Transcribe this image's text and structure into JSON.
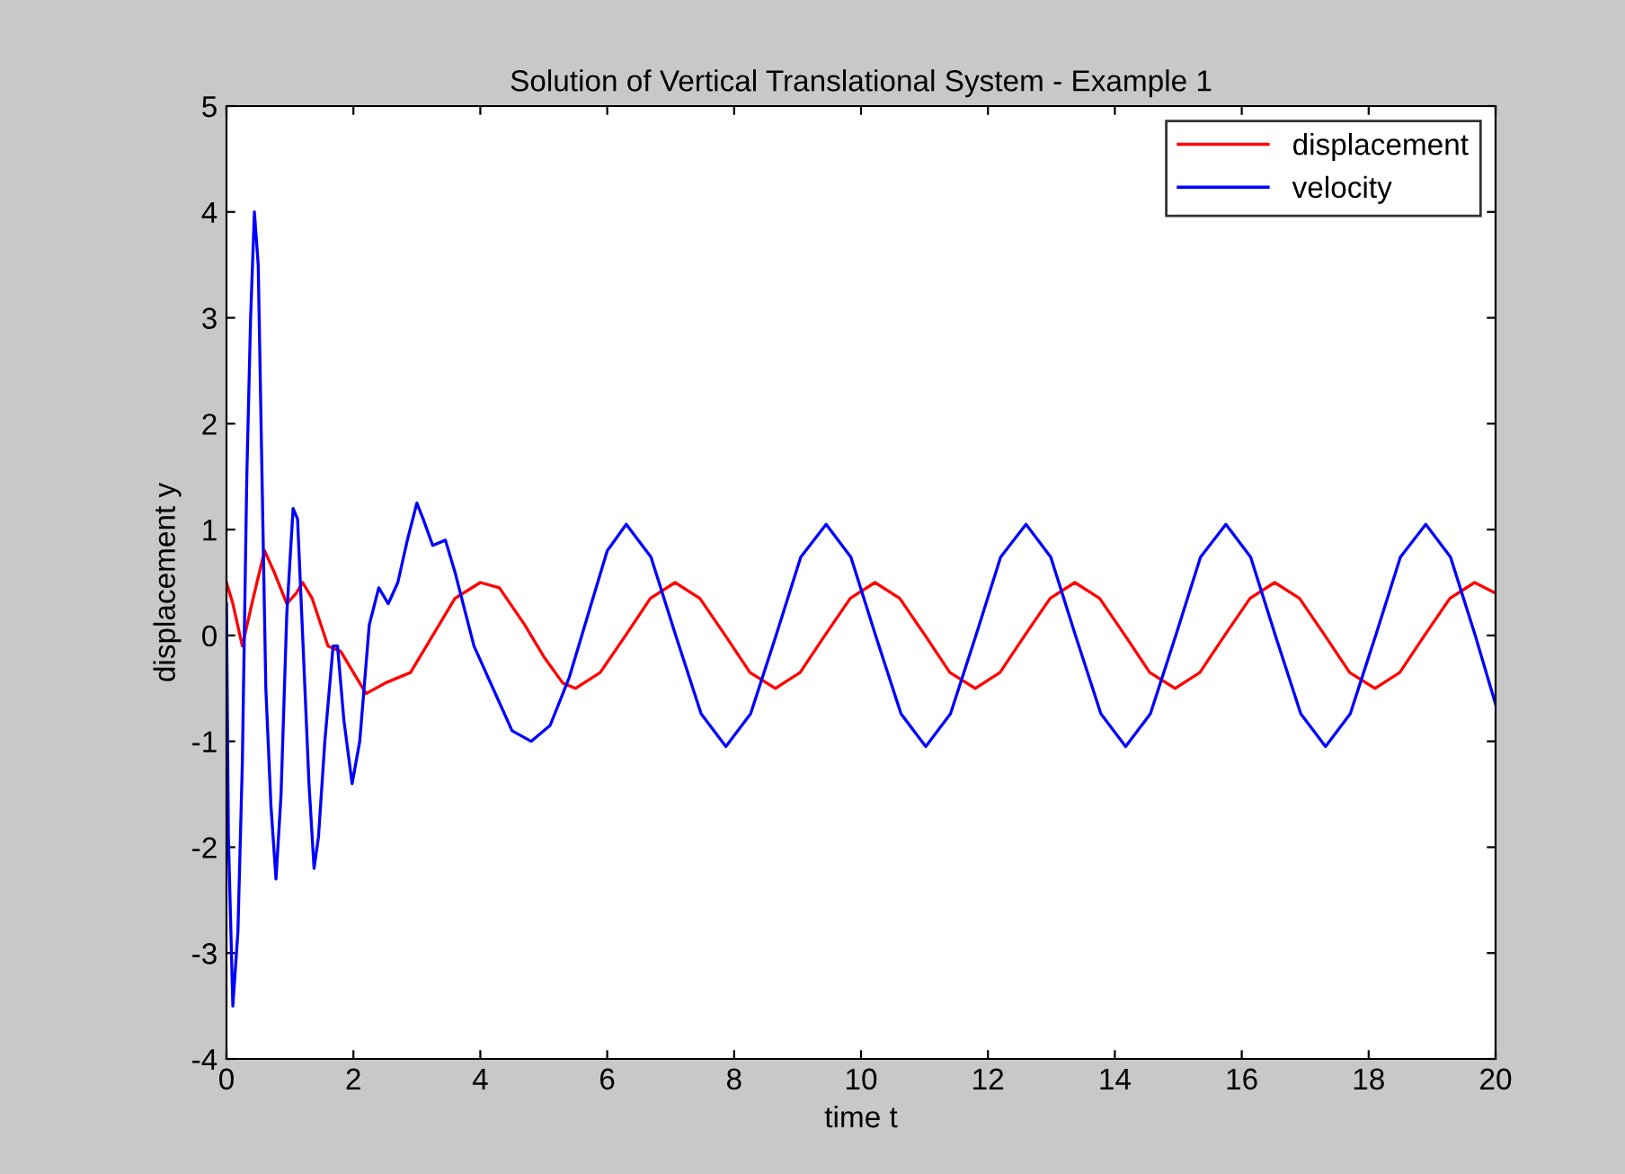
{
  "chart_data": {
    "type": "line",
    "title": "Solution of Vertical Translational System - Example 1",
    "xlabel": "time t",
    "ylabel": "displacement y",
    "xlim": [
      0,
      20
    ],
    "xticks": [
      0,
      2,
      4,
      6,
      8,
      10,
      12,
      14,
      16,
      18,
      20
    ],
    "ylim": [
      -4,
      5
    ],
    "yticks": [
      -4,
      -3,
      -2,
      -1,
      0,
      1,
      2,
      3,
      4,
      5
    ],
    "grid": false,
    "legend": "top right",
    "marker": "none",
    "line_style": "solid",
    "series": [
      {
        "name": "displacement",
        "color": "#ff0000",
        "x": [
          0,
          0.1,
          0.25,
          0.4,
          0.6,
          0.75,
          0.95,
          1.1,
          1.2,
          1.35,
          1.6,
          1.8,
          2.0,
          2.2,
          2.5,
          2.9,
          3.2,
          3.6,
          4.0,
          4.3,
          4.7,
          5.0,
          5.3,
          5.5,
          5.89,
          6.29,
          6.68,
          7.07,
          7.46,
          7.86,
          8.25,
          8.65,
          9.04,
          9.43,
          9.83,
          10.22,
          10.61,
          11.01,
          11.4,
          11.8,
          12.19,
          12.58,
          12.98,
          13.37,
          13.76,
          14.16,
          14.55,
          14.95,
          15.34,
          15.73,
          16.13,
          16.52,
          16.91,
          17.31,
          17.7,
          18.1,
          18.49,
          18.88,
          19.28,
          19.67,
          20
        ],
        "values": [
          0.5,
          0.3,
          -0.1,
          0.3,
          0.8,
          0.6,
          0.3,
          0.4,
          0.5,
          0.35,
          -0.1,
          -0.15,
          -0.35,
          -0.55,
          -0.45,
          -0.35,
          -0.05,
          0.35,
          0.5,
          0.45,
          0.1,
          -0.2,
          -0.45,
          -0.5,
          -0.35,
          0,
          0.35,
          0.5,
          0.35,
          0,
          -0.35,
          -0.5,
          -0.35,
          0,
          0.35,
          0.5,
          0.35,
          0,
          -0.35,
          -0.5,
          -0.35,
          0,
          0.35,
          0.5,
          0.35,
          0,
          -0.35,
          -0.5,
          -0.35,
          0,
          0.35,
          0.5,
          0.35,
          0,
          -0.35,
          -0.5,
          -0.35,
          0,
          0.35,
          0.5,
          0.4
        ]
      },
      {
        "name": "velocity",
        "color": "#0000ff",
        "x": [
          0,
          0.03,
          0.1,
          0.18,
          0.25,
          0.32,
          0.38,
          0.44,
          0.5,
          0.56,
          0.62,
          0.7,
          0.78,
          0.86,
          0.95,
          1.05,
          1.12,
          1.2,
          1.3,
          1.38,
          1.45,
          1.55,
          1.68,
          1.75,
          1.85,
          1.98,
          2.1,
          2.25,
          2.4,
          2.55,
          2.7,
          2.85,
          3.0,
          3.1,
          3.25,
          3.45,
          3.6,
          3.9,
          4.2,
          4.5,
          4.8,
          5.1,
          5.4,
          5.7,
          6.0,
          6.3,
          6.69,
          7.08,
          7.48,
          7.87,
          8.26,
          8.66,
          9.05,
          9.45,
          9.84,
          10.23,
          10.63,
          11.02,
          11.41,
          11.81,
          12.2,
          12.6,
          12.99,
          13.38,
          13.78,
          14.17,
          14.56,
          14.96,
          15.35,
          15.75,
          16.14,
          16.53,
          16.93,
          17.32,
          17.71,
          18.11,
          18.5,
          18.9,
          19.29,
          19.68,
          20
        ],
        "values": [
          0.3,
          -1.9,
          -3.5,
          -2.8,
          -1.2,
          1.5,
          3.0,
          4.0,
          3.5,
          1.5,
          -0.5,
          -1.6,
          -2.3,
          -1.5,
          0.2,
          1.2,
          1.1,
          0,
          -1.4,
          -2.2,
          -1.9,
          -1.0,
          -0.1,
          -0.1,
          -0.8,
          -1.4,
          -1.0,
          0.1,
          0.45,
          0.3,
          0.5,
          0.9,
          1.25,
          1.1,
          0.85,
          0.9,
          0.6,
          -0.1,
          -0.5,
          -0.9,
          -1.0,
          -0.85,
          -0.4,
          0.2,
          0.8,
          1.05,
          0.74,
          0,
          -0.74,
          -1.05,
          -0.74,
          0,
          0.74,
          1.05,
          0.74,
          0,
          -0.74,
          -1.05,
          -0.74,
          0,
          0.74,
          1.05,
          0.74,
          0,
          -0.74,
          -1.05,
          -0.74,
          0,
          0.74,
          1.05,
          0.74,
          0,
          -0.74,
          -1.05,
          -0.74,
          0,
          0.74,
          1.05,
          0.74,
          0,
          -0.65
        ]
      }
    ]
  }
}
